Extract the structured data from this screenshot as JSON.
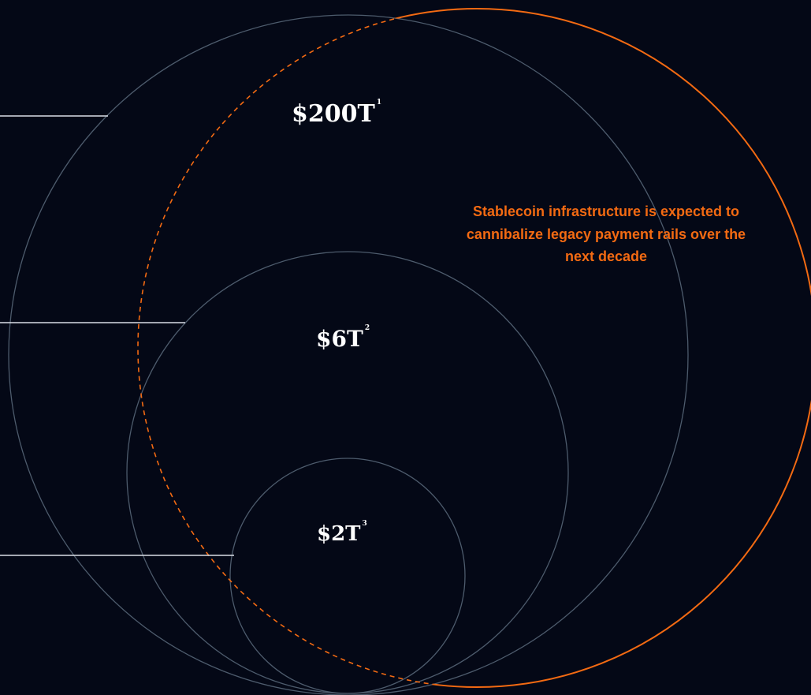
{
  "colors": {
    "background": "#040816",
    "circle_stroke": "#4d5b6c",
    "leader_line": "#d9dee5",
    "accent_orange": "#f36a12",
    "label_text": "#ffffff"
  },
  "markets": [
    {
      "value": "$200T",
      "footnote": "1"
    },
    {
      "value": "$6T",
      "footnote": "2"
    },
    {
      "value": "$2T",
      "footnote": "3"
    }
  ],
  "callout": "Stablecoin infrastructure is expected to cannibalize legacy payment rails over the next decade"
}
